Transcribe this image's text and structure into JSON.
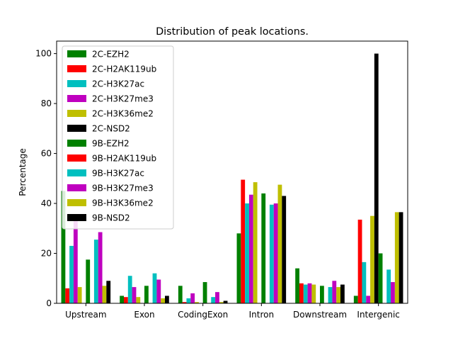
{
  "chart_data": {
    "type": "bar",
    "title": "Distribution of peak locations.",
    "xlabel": "",
    "ylabel": "Percentage",
    "ylim": [
      0,
      105
    ],
    "yticks": [
      0,
      20,
      40,
      60,
      80,
      100
    ],
    "grid": false,
    "legend_position": "upper-left",
    "categories": [
      "Upstream",
      "Exon",
      "CodingExon",
      "Intron",
      "Downstream",
      "Intergenic"
    ],
    "series": [
      {
        "name": "2C-EZH2",
        "color": "#008000",
        "values": [
          45,
          3,
          7,
          28,
          14,
          3
        ]
      },
      {
        "name": "2C-H2AK119ub",
        "color": "#ff0000",
        "values": [
          6,
          2.5,
          0.5,
          49.5,
          8,
          33.5
        ]
      },
      {
        "name": "2C-H3K27ac",
        "color": "#00bfbf",
        "values": [
          23,
          11,
          2,
          40,
          7.5,
          16.5
        ]
      },
      {
        "name": "2C-H3K27me3",
        "color": "#bf00bf",
        "values": [
          35,
          6.5,
          4,
          43.5,
          8,
          3
        ]
      },
      {
        "name": "2C-H3K36me2",
        "color": "#bfbf00",
        "values": [
          6.5,
          2.5,
          0.5,
          48.5,
          7.5,
          35
        ]
      },
      {
        "name": "2C-NSD2",
        "color": "#000000",
        "values": [
          0,
          0,
          0,
          0,
          0,
          100
        ]
      },
      {
        "name": "9B-EZH2",
        "color": "#008000",
        "values": [
          17.5,
          7,
          8.5,
          44,
          7,
          20
        ]
      },
      {
        "name": "9B-H2AK119ub",
        "color": "#ff0000",
        "values": [
          0,
          0,
          0,
          0,
          0,
          0
        ]
      },
      {
        "name": "9B-H3K27ac",
        "color": "#00bfbf",
        "values": [
          25.5,
          12,
          2.5,
          39.5,
          6.5,
          13.5
        ]
      },
      {
        "name": "9B-H3K27me3",
        "color": "#bf00bf",
        "values": [
          28.5,
          9.5,
          4.5,
          40,
          9,
          8.5
        ]
      },
      {
        "name": "9B-H3K36me2",
        "color": "#bfbf00",
        "values": [
          7,
          2,
          0.5,
          47.5,
          6.5,
          36.5
        ]
      },
      {
        "name": "9B-NSD2",
        "color": "#000000",
        "values": [
          9,
          3,
          1,
          43,
          7.5,
          36.5
        ]
      }
    ]
  }
}
